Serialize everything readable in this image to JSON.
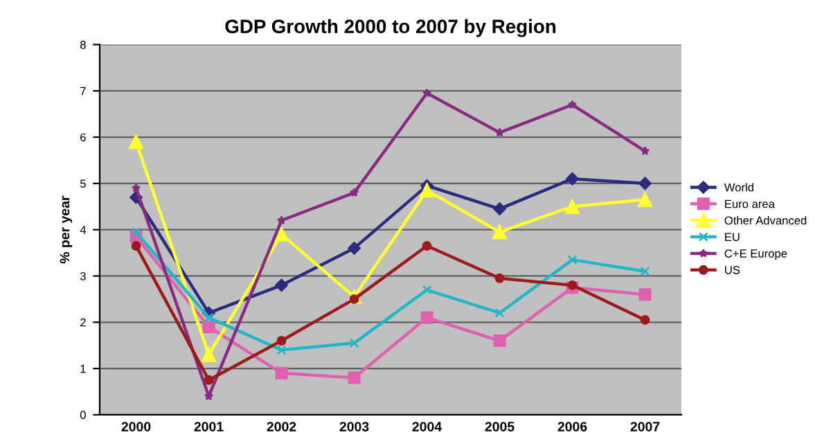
{
  "chart_data": {
    "type": "line",
    "title": "GDP Growth 2000 to 2007 by Region",
    "ylabel": "% per year",
    "categories": [
      "2000",
      "2001",
      "2002",
      "2003",
      "2004",
      "2005",
      "2006",
      "2007"
    ],
    "ylim": [
      0,
      8
    ],
    "yticks": [
      0,
      1,
      2,
      3,
      4,
      5,
      6,
      7,
      8
    ],
    "grid": "y",
    "legend": "right",
    "series": [
      {
        "name": "World",
        "color": "#2b2b80",
        "marker": "diamond",
        "values": [
          4.7,
          2.2,
          2.8,
          3.6,
          4.95,
          4.45,
          5.1,
          5.0
        ]
      },
      {
        "name": "Euro area",
        "color": "#e060b0",
        "marker": "square",
        "values": [
          3.85,
          1.9,
          0.9,
          0.8,
          2.1,
          1.6,
          2.75,
          2.6
        ]
      },
      {
        "name": "Other Advanced",
        "color": "#ffff33",
        "marker": "triangle",
        "values": [
          5.9,
          1.3,
          3.9,
          2.55,
          4.85,
          3.95,
          4.5,
          4.65
        ]
      },
      {
        "name": "EU",
        "color": "#20b8c8",
        "marker": "cross",
        "values": [
          3.95,
          2.1,
          1.4,
          1.55,
          2.7,
          2.2,
          3.35,
          3.1
        ]
      },
      {
        "name": "C+E Europe",
        "color": "#8b2a82",
        "marker": "star",
        "values": [
          4.9,
          0.4,
          4.2,
          4.8,
          6.95,
          6.1,
          6.7,
          5.7
        ]
      },
      {
        "name": "US",
        "color": "#9b1b1b",
        "marker": "circle",
        "values": [
          3.65,
          0.75,
          1.6,
          2.5,
          3.65,
          2.95,
          2.8,
          2.05
        ]
      }
    ]
  }
}
